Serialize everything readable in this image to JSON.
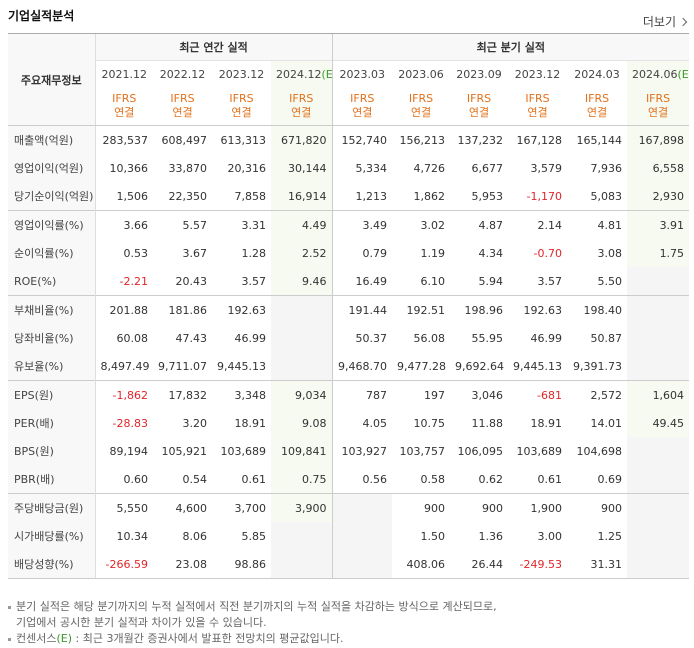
{
  "header": {
    "title": "기업실적분석",
    "more": "더보기"
  },
  "table": {
    "corner": "주요재무정보",
    "groups": [
      "최근 연간 실적",
      "최근 분기 실적"
    ],
    "group_spans": [
      4,
      6
    ],
    "periods": [
      {
        "period": "2021.12"
      },
      {
        "period": "2022.12"
      },
      {
        "period": "2023.12"
      },
      {
        "period": "2024.12",
        "mark": "(E)"
      },
      {
        "period": "2023.03"
      },
      {
        "period": "2023.06"
      },
      {
        "period": "2023.09"
      },
      {
        "period": "2023.12"
      },
      {
        "period": "2024.03"
      },
      {
        "period": "2024.06",
        "mark": "(E)"
      }
    ],
    "standard": [
      "IFRS",
      "연결"
    ],
    "rows": [
      [
        "매출액(억원)",
        "283,537",
        "608,497",
        "613,313",
        "671,820",
        "152,740",
        "156,213",
        "137,232",
        "167,128",
        "165,144",
        "167,898"
      ],
      [
        "영업이익(억원)",
        "10,366",
        "33,870",
        "20,316",
        "30,144",
        "5,334",
        "4,726",
        "6,677",
        "3,579",
        "7,936",
        "6,558"
      ],
      [
        "당기순이익(억원)",
        "1,506",
        "22,350",
        "7,858",
        "16,914",
        "1,213",
        "1,862",
        "5,953",
        "-1,170",
        "5,083",
        "2,930"
      ],
      [
        "영업이익률(%)",
        "3.66",
        "5.57",
        "3.31",
        "4.49",
        "3.49",
        "3.02",
        "4.87",
        "2.14",
        "4.81",
        "3.91"
      ],
      [
        "순이익률(%)",
        "0.53",
        "3.67",
        "1.28",
        "2.52",
        "0.79",
        "1.19",
        "4.34",
        "-0.70",
        "3.08",
        "1.75"
      ],
      [
        "ROE(%)",
        "-2.21",
        "20.43",
        "3.57",
        "9.46",
        "16.49",
        "6.10",
        "5.94",
        "3.57",
        "5.50",
        null
      ],
      [
        "부채비율(%)",
        "201.88",
        "181.86",
        "192.63",
        null,
        "191.44",
        "192.51",
        "198.96",
        "192.63",
        "198.40",
        null
      ],
      [
        "당좌비율(%)",
        "60.08",
        "47.43",
        "46.99",
        null,
        "50.37",
        "56.08",
        "55.95",
        "46.99",
        "50.87",
        null
      ],
      [
        "유보율(%)",
        "8,497.49",
        "9,711.07",
        "9,445.13",
        null,
        "9,468.70",
        "9,477.28",
        "9,692.64",
        "9,445.13",
        "9,391.73",
        null
      ],
      [
        "EPS(원)",
        "-1,862",
        "17,832",
        "3,348",
        "9,034",
        "787",
        "197",
        "3,046",
        "-681",
        "2,572",
        "1,604"
      ],
      [
        "PER(배)",
        "-28.83",
        "3.20",
        "18.91",
        "9.08",
        "4.05",
        "10.75",
        "11.88",
        "18.91",
        "14.01",
        "49.45"
      ],
      [
        "BPS(원)",
        "89,194",
        "105,921",
        "103,689",
        "109,841",
        "103,927",
        "103,757",
        "106,095",
        "103,689",
        "104,698",
        null
      ],
      [
        "PBR(배)",
        "0.60",
        "0.54",
        "0.61",
        "0.75",
        "0.56",
        "0.58",
        "0.62",
        "0.61",
        "0.69",
        null
      ],
      [
        "주당배당금(원)",
        "5,550",
        "4,600",
        "3,700",
        "3,900",
        null,
        "900",
        "900",
        "1,900",
        "900",
        null
      ],
      [
        "시가배당률(%)",
        "10.34",
        "8.06",
        "5.85",
        null,
        null,
        "1.50",
        "1.36",
        "3.00",
        "1.25",
        null
      ],
      [
        "배당성향(%)",
        "-266.59",
        "23.08",
        "98.86",
        null,
        null,
        "408.06",
        "26.44",
        "-249.53",
        "31.31",
        null
      ]
    ]
  },
  "notes": [
    [
      "분기 실적은 해당 분기까지의 누적 실적에서 직전 분기까지의 누적 실적을 차감하는 방식으로 계산되므로,",
      "기업에서 공시한 분기 실적과 차이가 있을 수 있습니다."
    ],
    [
      "컨센서스",
      "(E)",
      " : 최근 3개월간 증권사에서 발표한 전망치의 평균값입니다."
    ]
  ]
}
